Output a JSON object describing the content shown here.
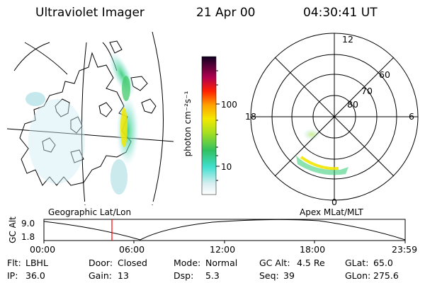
{
  "header": {
    "instrument": "Ultraviolet Imager",
    "date": "21 Apr 00",
    "time": "04:30:41 UT"
  },
  "colorbar": {
    "unit_label": "photon cm⁻²s⁻¹",
    "ticks": [
      "100",
      "10"
    ]
  },
  "polar": {
    "hour_labels": {
      "top": "12",
      "left": "18",
      "right": "6",
      "bottom": "0"
    },
    "lat_labels": [
      "60",
      "70",
      "80"
    ]
  },
  "projection_labels": {
    "left": "Geographic Lat/Lon",
    "right": "Apex MLat/MLT"
  },
  "altitude_plot": {
    "axis_title": "GC Alt",
    "y_ticks": [
      "9.0",
      "1.8"
    ],
    "x_ticks": [
      "00:00",
      "06:00",
      "12:00",
      "18:00",
      "23:59"
    ],
    "marker_time": "04:30:41",
    "marker_color": "#ff0000"
  },
  "footer": {
    "row1": [
      {
        "label": "Flt:",
        "value": "LBHL"
      },
      {
        "label": "Door:",
        "value": "Closed"
      },
      {
        "label": "Mode:",
        "value": "Normal"
      },
      {
        "label": "GC Alt:",
        "value": "4.5 Re"
      },
      {
        "label": "GLat:",
        "value": "65.0"
      }
    ],
    "row2": [
      {
        "label": "IP:",
        "value": "36.0"
      },
      {
        "label": "Gain:",
        "value": "13"
      },
      {
        "label": "Dsp:",
        "value": "5.3"
      },
      {
        "label": "Seq:",
        "value": "39"
      },
      {
        "label": "GLon:",
        "value": "275.6"
      }
    ]
  }
}
